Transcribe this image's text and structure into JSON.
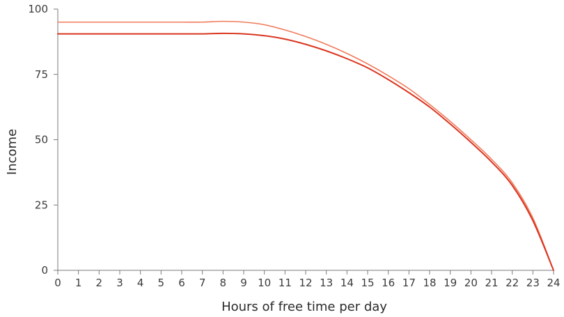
{
  "chart_data": {
    "type": "line",
    "title": "",
    "xlabel": "Hours of free time per day",
    "ylabel": "Income",
    "xlim": [
      0,
      24
    ],
    "ylim": [
      0,
      100
    ],
    "x_ticks": [
      0,
      1,
      2,
      3,
      4,
      5,
      6,
      7,
      8,
      9,
      10,
      11,
      12,
      13,
      14,
      15,
      16,
      17,
      18,
      19,
      20,
      21,
      22,
      23,
      24
    ],
    "y_ticks": [
      0,
      25,
      50,
      75,
      100
    ],
    "grid": false,
    "legend": "none",
    "x": [
      0,
      1,
      2,
      3,
      4,
      5,
      6,
      7,
      8,
      9,
      10,
      11,
      12,
      13,
      14,
      15,
      16,
      17,
      18,
      19,
      20,
      21,
      22,
      23,
      24
    ],
    "series": [
      {
        "color": "#f07a5a",
        "values": [
          95,
          95,
          95,
          95,
          95,
          95,
          95,
          95,
          95.3,
          95,
          94,
          92,
          89.5,
          86.5,
          83,
          79,
          74.5,
          69.5,
          63.5,
          57,
          50,
          42.5,
          33.5,
          20,
          0
        ]
      },
      {
        "color": "#d9351f",
        "values": [
          90.5,
          90.5,
          90.5,
          90.5,
          90.5,
          90.5,
          90.5,
          90.5,
          90.7,
          90.5,
          89.8,
          88.5,
          86.5,
          84,
          81,
          77.5,
          73,
          68,
          62.5,
          56,
          49,
          41.5,
          32.5,
          19,
          0
        ]
      }
    ]
  }
}
